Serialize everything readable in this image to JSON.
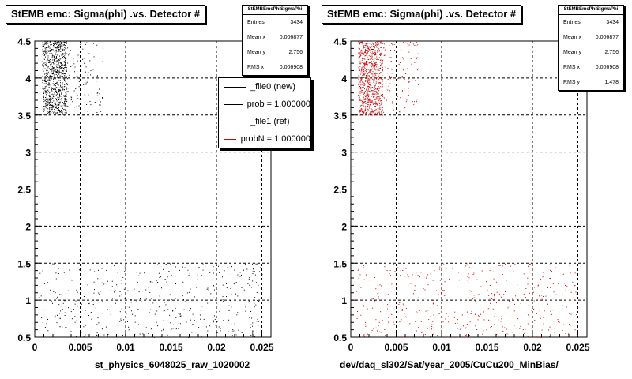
{
  "chart_data": [
    {
      "type": "scatter",
      "title": "StEMB emc: Sigma(phi) .vs. Detector #",
      "xlabel": "st_physics_6048025_raw_1020002",
      "ylabel": "",
      "xlim": [
        0,
        0.026
      ],
      "ylim": [
        0.5,
        4.5
      ],
      "x_ticks": [
        "0",
        "0.005",
        "0.01",
        "0.015",
        "0.02",
        "0.025"
      ],
      "y_ticks": [
        "0.5",
        "1",
        "1.5",
        "2",
        "2.5",
        "3",
        "3.5",
        "4",
        "4.5"
      ],
      "grid": true,
      "point_color": "#000000",
      "clusters": [
        {
          "x": [
            0.0008,
            0.0035
          ],
          "y": [
            3.5,
            4.5
          ],
          "density": "high"
        },
        {
          "x": [
            0.0035,
            0.0075
          ],
          "y": [
            3.5,
            4.5
          ],
          "density": "low"
        },
        {
          "x": [
            0.0005,
            0.025
          ],
          "y": [
            0.5,
            1.5
          ],
          "density": "medium"
        }
      ],
      "stats": {
        "title": "StEMBEmcPhiSigmaPhi",
        "rows": [
          {
            "label": "Entries",
            "value": "3434"
          },
          {
            "label": "Mean x",
            "value": "0.006877"
          },
          {
            "label": "Mean y",
            "value": "2.756"
          },
          {
            "label": "RMS x",
            "value": "0.006908"
          }
        ]
      },
      "legend": [
        {
          "label": "_file0 (new)",
          "color": "#000000"
        },
        {
          "label": "prob = 1.000000",
          "color": "#000000"
        },
        {
          "label": "_file1 (ref)",
          "color": "#cc0000"
        },
        {
          "label": "probN = 1.000000",
          "color": "#cc0000"
        }
      ]
    },
    {
      "type": "scatter",
      "title": "StEMB emc: Sigma(phi) .vs. Detector #",
      "xlabel": "dev/daq_sl302/Sat/year_2005/CuCu200_MinBias/",
      "ylabel": "",
      "xlim": [
        0,
        0.026
      ],
      "ylim": [
        0.5,
        4.5
      ],
      "x_ticks": [
        "0",
        "0.005",
        "0.01",
        "0.015",
        "0.02",
        "0.025"
      ],
      "y_ticks": [
        "0.5",
        "1",
        "1.5",
        "2",
        "2.5",
        "3",
        "3.5",
        "4",
        "4.5"
      ],
      "grid": true,
      "point_color": "#cc0000",
      "clusters": [
        {
          "x": [
            0.0008,
            0.0035
          ],
          "y": [
            3.5,
            4.5
          ],
          "density": "high"
        },
        {
          "x": [
            0.0035,
            0.0075
          ],
          "y": [
            3.5,
            4.5
          ],
          "density": "low"
        },
        {
          "x": [
            0.0005,
            0.025
          ],
          "y": [
            0.5,
            1.5
          ],
          "density": "medium"
        }
      ],
      "stats": {
        "title": "StEMBEmcPhiSigmaPhi",
        "rows": [
          {
            "label": "Entries",
            "value": "3434"
          },
          {
            "label": "Mean x",
            "value": "0.006877"
          },
          {
            "label": "Mean y",
            "value": "2.756"
          },
          {
            "label": "RMS x",
            "value": "0.006908"
          },
          {
            "label": "RMS y",
            "value": "1.478"
          }
        ]
      }
    }
  ]
}
